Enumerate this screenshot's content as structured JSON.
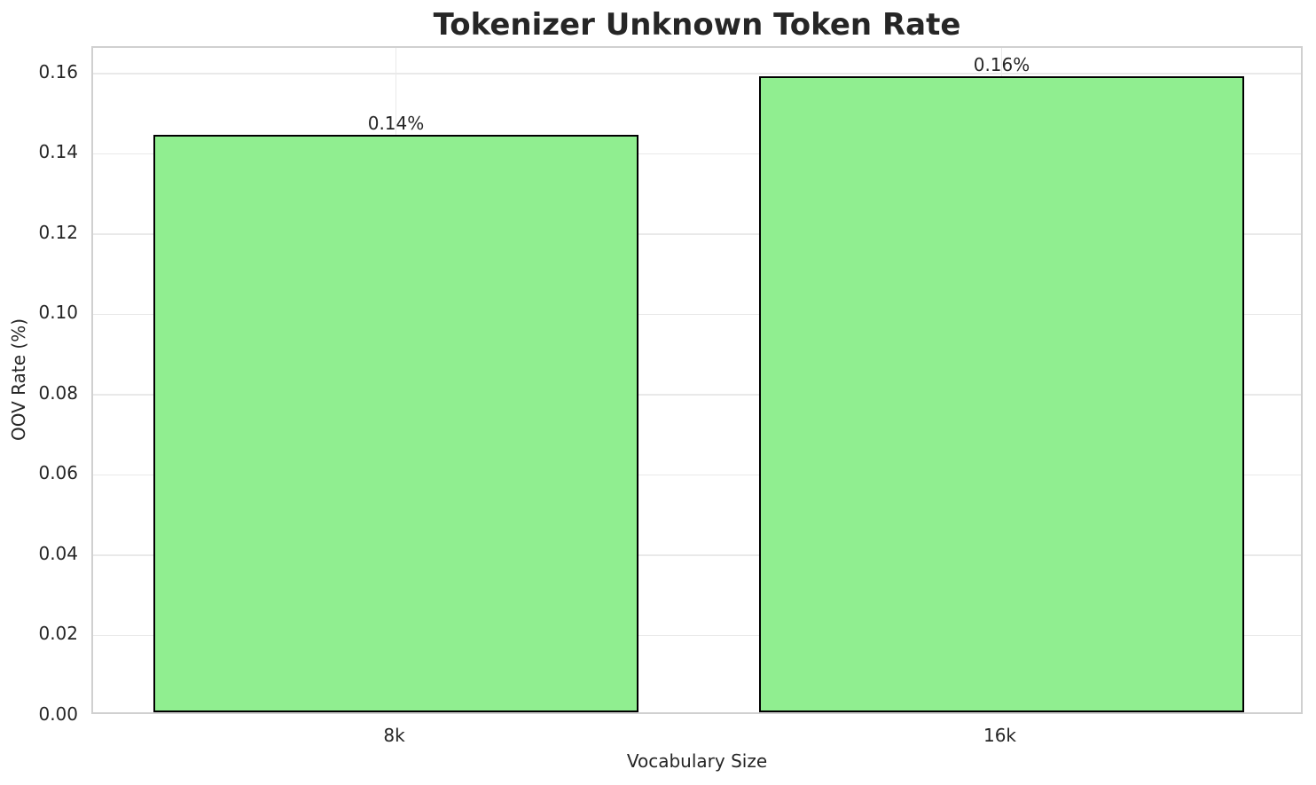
{
  "chart_data": {
    "type": "bar",
    "title": "Tokenizer Unknown Token Rate",
    "xlabel": "Vocabulary Size",
    "ylabel": "OOV Rate (%)",
    "categories": [
      "8k",
      "16k"
    ],
    "values": [
      0.1438,
      0.1585
    ],
    "bar_labels": [
      "0.14%",
      "0.16%"
    ],
    "yticks": [
      0.0,
      0.02,
      0.04,
      0.06,
      0.08,
      0.1,
      0.12,
      0.14,
      0.16
    ],
    "ytick_labels": [
      "0.00",
      "0.02",
      "0.04",
      "0.06",
      "0.08",
      "0.10",
      "0.12",
      "0.14",
      "0.16"
    ],
    "ylim": [
      0,
      0.1664
    ],
    "grid": true,
    "legend": "none",
    "bar_color": "#90EE90",
    "bar_edge_color": "#000000",
    "grid_color": "#e9e9e9",
    "axes_edge_color": "#d0d0d0",
    "text_color": "#262626",
    "background_color": "#ffffff"
  }
}
